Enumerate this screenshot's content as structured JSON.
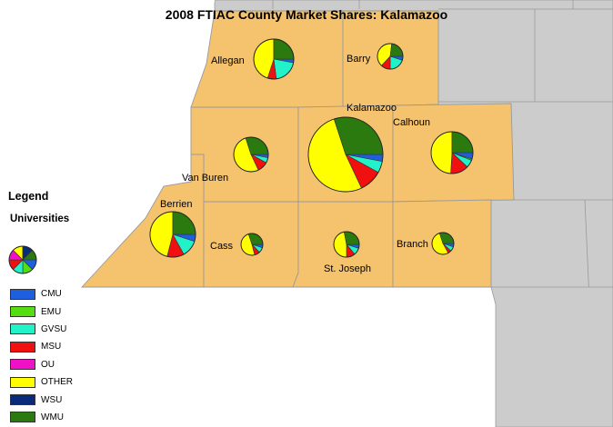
{
  "title": "2008 FTIAC County Market Shares: Kalamazoo",
  "legend": {
    "title": "Legend",
    "subtitle": "Universities",
    "items": [
      {
        "label": "CMU",
        "color": "#1e5fe0"
      },
      {
        "label": "EMU",
        "color": "#55dd11"
      },
      {
        "label": "GVSU",
        "color": "#22f2c8"
      },
      {
        "label": "MSU",
        "color": "#f01010"
      },
      {
        "label": "OU",
        "color": "#f010c8"
      },
      {
        "label": "OTHER",
        "color": "#ffff00"
      },
      {
        "label": "WSU",
        "color": "#0a2a7a"
      },
      {
        "label": "WMU",
        "color": "#2a7a10"
      }
    ]
  },
  "colors": {
    "county_fill": "#f5c36e",
    "neighbor_fill": "#cccccc",
    "border": "#999999"
  },
  "counties": [
    {
      "name": "Allegan",
      "shares": {
        "CMU": 3,
        "EMU": 0,
        "GVSU": 20,
        "MSU": 7,
        "OU": 0,
        "OTHER": 45,
        "WSU": 0,
        "WMU": 25
      }
    },
    {
      "name": "Barry",
      "shares": {
        "CMU": 5,
        "EMU": 0,
        "GVSU": 20,
        "MSU": 12,
        "OU": 0,
        "OTHER": 40,
        "WSU": 0,
        "WMU": 23
      }
    },
    {
      "name": "Kalamazoo",
      "shares": {
        "CMU": 3,
        "EMU": 0,
        "GVSU": 5,
        "MSU": 10,
        "OU": 0,
        "OTHER": 52,
        "WSU": 0,
        "WMU": 30
      }
    },
    {
      "name": "Calhoun",
      "shares": {
        "CMU": 5,
        "EMU": 1,
        "GVSU": 6,
        "MSU": 14,
        "OU": 0,
        "OTHER": 49,
        "WSU": 0,
        "WMU": 25
      }
    },
    {
      "name": "Van Buren",
      "shares": {
        "CMU": 3,
        "EMU": 0,
        "GVSU": 5,
        "MSU": 10,
        "OU": 0,
        "OTHER": 52,
        "WSU": 0,
        "WMU": 30
      }
    },
    {
      "name": "Berrien",
      "shares": {
        "CMU": 5,
        "EMU": 0,
        "GVSU": 12,
        "MSU": 12,
        "OU": 0,
        "OTHER": 46,
        "WSU": 0,
        "WMU": 25
      }
    },
    {
      "name": "Cass",
      "shares": {
        "CMU": 5,
        "EMU": 0,
        "GVSU": 8,
        "MSU": 8,
        "OU": 0,
        "OTHER": 49,
        "WSU": 0,
        "WMU": 30
      }
    },
    {
      "name": "St. Joseph",
      "shares": {
        "CMU": 5,
        "EMU": 0,
        "GVSU": 9,
        "MSU": 11,
        "OU": 0,
        "OTHER": 47,
        "WSU": 0,
        "WMU": 28
      }
    },
    {
      "name": "Branch",
      "shares": {
        "CMU": 5,
        "EMU": 0,
        "GVSU": 7,
        "MSU": 5,
        "OU": 0,
        "OTHER": 53,
        "WSU": 0,
        "WMU": 30
      }
    }
  ]
}
